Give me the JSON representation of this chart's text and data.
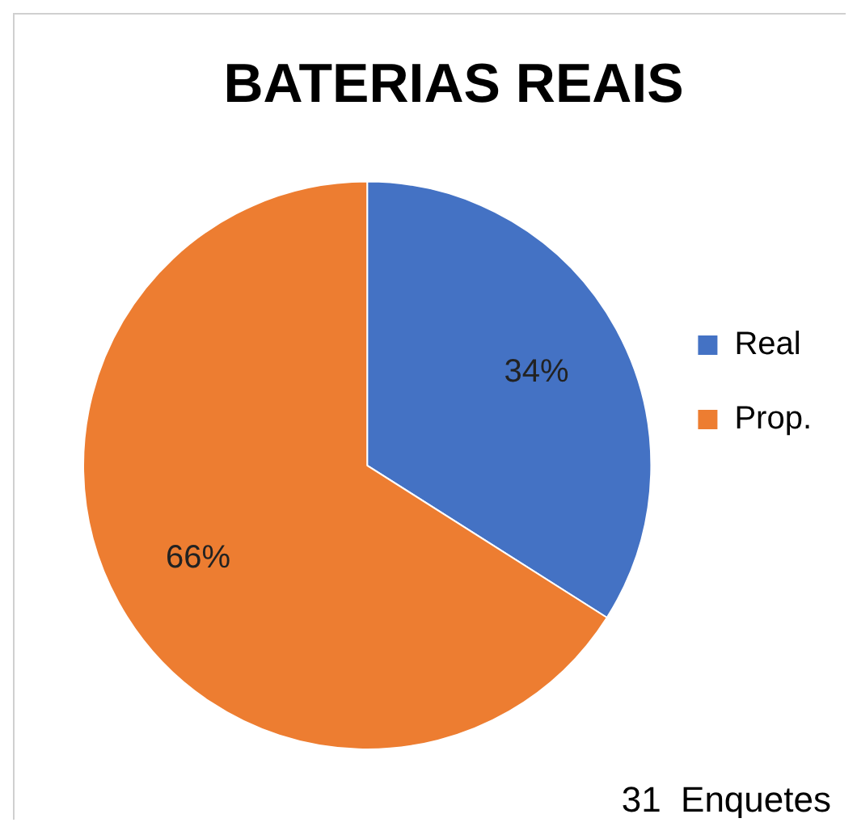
{
  "chart_data": {
    "type": "pie",
    "title": "BATERIAS REAIS",
    "categories": [
      "Real",
      "Prop."
    ],
    "values": [
      34,
      66
    ],
    "colors": [
      "#4472c4",
      "#ed7d31"
    ],
    "legend": "right",
    "value_labels": [
      "34%",
      "66%"
    ],
    "annotations": [
      "31  Enquetes"
    ]
  }
}
